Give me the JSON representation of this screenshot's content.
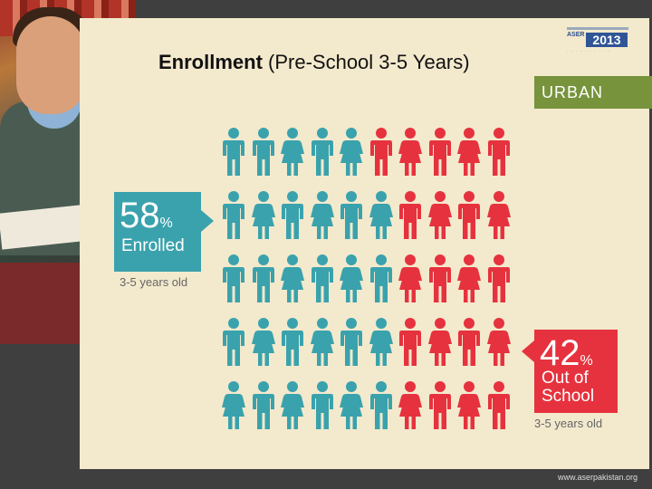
{
  "title": {
    "bold": "Enrollment",
    "rest": " (Pre-School 3-5 Years)"
  },
  "logo": {
    "year": "2013",
    "name": "ASER"
  },
  "region": "URBAN",
  "enrolled": {
    "percent": "58",
    "percent_sign": "%",
    "label": "Enrolled",
    "age": "3-5 years old",
    "color": "#3aa2ac"
  },
  "out_of_school": {
    "percent": "42",
    "percent_sign": "%",
    "label_line1": "Out of",
    "label_line2": "School",
    "age": "3-5 years old",
    "color": "#e6323e"
  },
  "pictogram": {
    "rows": [
      [
        "boy",
        "boy",
        "girl",
        "boy",
        "girl",
        "boy",
        "girl",
        "boy",
        "girl",
        "boy"
      ],
      [
        "boy",
        "girl",
        "boy",
        "girl",
        "boy",
        "girl",
        "boy",
        "girl",
        "boy",
        "girl"
      ],
      [
        "boy",
        "boy",
        "girl",
        "boy",
        "girl",
        "boy",
        "girl",
        "boy",
        "girl",
        "boy"
      ],
      [
        "boy",
        "girl",
        "boy",
        "girl",
        "boy",
        "girl",
        "boy",
        "girl",
        "boy",
        "girl"
      ],
      [
        "girl",
        "boy",
        "girl",
        "boy",
        "girl",
        "boy",
        "girl",
        "boy",
        "girl",
        "boy"
      ]
    ],
    "colors": [
      [
        "teal",
        "teal",
        "teal",
        "teal",
        "teal",
        "red",
        "red",
        "red",
        "red",
        "red"
      ],
      [
        "teal",
        "teal",
        "teal",
        "teal",
        "teal",
        "teal",
        "red",
        "red",
        "red",
        "red"
      ],
      [
        "teal",
        "teal",
        "teal",
        "teal",
        "teal",
        "teal",
        "red",
        "red",
        "red",
        "red"
      ],
      [
        "teal",
        "teal",
        "teal",
        "teal",
        "teal",
        "teal",
        "red",
        "red",
        "red",
        "red"
      ],
      [
        "teal",
        "teal",
        "teal",
        "teal",
        "teal",
        "teal",
        "red",
        "red",
        "red",
        "red"
      ]
    ]
  },
  "website": "www.aserpakistan.org"
}
